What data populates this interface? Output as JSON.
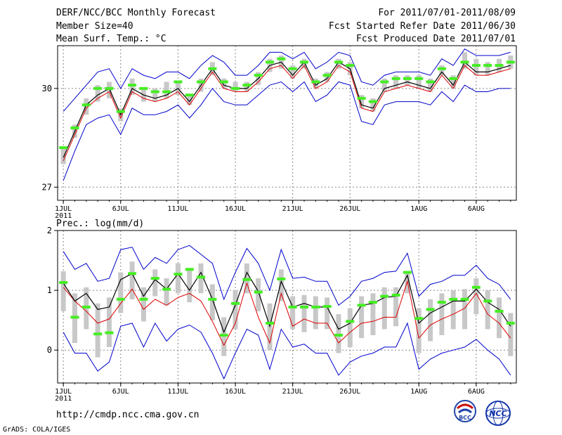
{
  "header": {
    "title": "DERF/NCC/BCC Monthly Forecast",
    "member_size": "Member Size=40",
    "variable_top": "Mean Surf. Temp.: °C",
    "period": "For 2011/07/01-2011/08/09",
    "started": "Fcst Started Refer Date 2011/06/30",
    "produced": "Fcst Produced Date 2011/07/01"
  },
  "footer": {
    "url": "http://cmdp.ncc.cma.gov.cn",
    "grads": "GrADS: COLA/IGES",
    "logo_bcc": "BCC",
    "logo_ncc": "NCC"
  },
  "colors": {
    "box": "#c8c8c8",
    "median": "#44ee22",
    "mean": "#000000",
    "red": "#dd0000",
    "envelope": "#0000cc",
    "grid": "#888888"
  },
  "chart_data": [
    {
      "type": "line",
      "title": "Mean Surf. Temp.: °C",
      "ylabel": "°C",
      "ylim": [
        26.6,
        31.3
      ],
      "yticks": [
        27,
        30
      ],
      "ytick_labels": [
        "27",
        "30"
      ],
      "xlim": [
        0.5,
        40.5
      ],
      "xticks": [
        1,
        6,
        11,
        16,
        21,
        26,
        32,
        37
      ],
      "xtick_labels": [
        "1JUL",
        "6JUL",
        "11JUL",
        "16JUL",
        "21JUL",
        "26JUL",
        "1AUG",
        "6AUG"
      ],
      "x_sublabel": "2011",
      "series": [
        {
          "name": "ensemble mean",
          "values": [
            27.9,
            28.7,
            29.5,
            29.8,
            30.0,
            29.2,
            30.0,
            29.8,
            29.7,
            29.8,
            30.0,
            29.6,
            30.1,
            30.6,
            30.1,
            30.0,
            30.0,
            30.3,
            30.7,
            30.8,
            30.4,
            30.8,
            30.1,
            30.3,
            30.8,
            30.6,
            29.5,
            29.4,
            30.0,
            30.1,
            30.2,
            30.1,
            30.0,
            30.5,
            30.1,
            30.8,
            30.5,
            30.5,
            30.6,
            30.7
          ]
        },
        {
          "name": "red line",
          "values": [
            27.8,
            28.6,
            29.4,
            29.7,
            29.9,
            29.1,
            29.9,
            29.7,
            29.6,
            29.7,
            29.9,
            29.5,
            30.0,
            30.5,
            30.0,
            29.9,
            29.9,
            30.2,
            30.6,
            30.7,
            30.3,
            30.7,
            30.0,
            30.2,
            30.7,
            30.5,
            29.4,
            29.3,
            29.9,
            30.0,
            30.1,
            30.0,
            29.9,
            30.4,
            30.0,
            30.7,
            30.4,
            30.4,
            30.5,
            30.6
          ]
        },
        {
          "name": "upper envelope",
          "values": [
            29.3,
            29.7,
            30.1,
            30.5,
            30.6,
            30.0,
            30.6,
            30.4,
            30.3,
            30.5,
            30.5,
            30.3,
            30.7,
            31.0,
            30.8,
            30.4,
            30.4,
            30.7,
            31.1,
            31.1,
            30.9,
            31.1,
            30.6,
            30.8,
            31.1,
            31.0,
            30.2,
            30.1,
            30.4,
            30.5,
            30.5,
            30.5,
            30.4,
            30.9,
            30.7,
            31.2,
            31.0,
            31.0,
            31.0,
            31.1
          ]
        },
        {
          "name": "lower envelope",
          "values": [
            27.2,
            28.1,
            28.9,
            29.1,
            29.2,
            28.6,
            29.4,
            29.2,
            29.2,
            29.3,
            29.5,
            29.1,
            29.5,
            30.0,
            29.6,
            29.5,
            29.5,
            29.8,
            30.1,
            30.2,
            29.9,
            30.2,
            29.6,
            29.8,
            30.2,
            30.1,
            29.0,
            28.9,
            29.5,
            29.6,
            29.6,
            29.6,
            29.5,
            29.9,
            29.6,
            30.1,
            29.9,
            29.9,
            30.0,
            30.0
          ]
        }
      ],
      "box_low": [
        27.7,
        28.5,
        29.2,
        29.6,
        29.7,
        29.0,
        29.8,
        29.6,
        29.6,
        29.7,
        29.8,
        29.5,
        29.9,
        30.4,
        30.0,
        29.9,
        29.9,
        30.1,
        30.5,
        30.6,
        30.3,
        30.6,
        30.0,
        30.2,
        30.6,
        30.4,
        29.4,
        29.3,
        29.9,
        30.0,
        30.1,
        30.0,
        29.9,
        30.4,
        30.0,
        30.6,
        30.4,
        30.4,
        30.5,
        30.6
      ],
      "box_high": [
        28.2,
        28.9,
        29.7,
        30.1,
        30.2,
        29.4,
        30.3,
        30.0,
        30.0,
        30.2,
        30.2,
        29.8,
        30.3,
        30.8,
        30.3,
        30.2,
        30.2,
        30.5,
        30.9,
        31.0,
        30.7,
        30.9,
        30.3,
        30.5,
        30.9,
        30.8,
        29.8,
        29.7,
        30.3,
        30.4,
        30.4,
        30.4,
        30.3,
        30.7,
        30.4,
        31.1,
        30.9,
        30.8,
        30.9,
        31.0
      ],
      "median": [
        28.2,
        28.8,
        29.5,
        30.0,
        30.0,
        29.3,
        30.1,
        30.0,
        29.9,
        29.9,
        30.2,
        29.8,
        30.2,
        30.6,
        30.2,
        30.0,
        30.1,
        30.4,
        30.8,
        30.9,
        30.6,
        30.8,
        30.2,
        30.4,
        30.8,
        30.7,
        29.7,
        29.6,
        30.2,
        30.3,
        30.3,
        30.3,
        30.2,
        30.6,
        30.3,
        30.8,
        30.7,
        30.7,
        30.7,
        30.8
      ]
    },
    {
      "type": "line",
      "title": "Prec.: log(mm/d)",
      "ylabel": "log(mm/d)",
      "ylim": [
        -0.55,
        2
      ],
      "yticks": [
        0,
        1,
        2
      ],
      "ytick_labels": [
        "0",
        "1",
        "2"
      ],
      "xlim": [
        0.5,
        40.5
      ],
      "xticks": [
        1,
        6,
        11,
        16,
        21,
        26,
        32,
        37
      ],
      "xtick_labels": [
        "1JUL",
        "6JUL",
        "11JUL",
        "16JUL",
        "21JUL",
        "26JUL",
        "1AUG",
        "6AUG"
      ],
      "x_sublabel": "2011",
      "series": [
        {
          "name": "ensemble mean",
          "values": [
            1.12,
            0.82,
            0.95,
            0.68,
            0.72,
            1.18,
            1.28,
            0.9,
            1.18,
            1.02,
            1.28,
            1.0,
            1.3,
            0.85,
            0.3,
            0.75,
            1.3,
            0.98,
            0.4,
            1.15,
            0.72,
            0.78,
            0.72,
            0.72,
            0.35,
            0.45,
            0.75,
            0.78,
            0.88,
            0.9,
            1.25,
            0.45,
            0.62,
            0.72,
            0.82,
            0.82,
            1.02,
            0.8,
            0.68,
            0.4
          ]
        },
        {
          "name": "red line",
          "values": [
            1.05,
            0.82,
            0.65,
            0.45,
            0.52,
            0.78,
            1.02,
            0.68,
            0.85,
            0.75,
            0.88,
            0.95,
            0.82,
            0.48,
            0.08,
            0.45,
            1.12,
            0.55,
            0.12,
            0.95,
            0.4,
            0.52,
            0.45,
            0.45,
            0.12,
            0.3,
            0.45,
            0.48,
            0.55,
            0.55,
            1.15,
            0.2,
            0.42,
            0.52,
            0.6,
            0.7,
            0.95,
            0.6,
            0.45,
            0.2
          ]
        },
        {
          "name": "upper envelope",
          "values": [
            1.65,
            1.35,
            1.45,
            1.15,
            1.2,
            1.68,
            1.72,
            1.35,
            1.55,
            1.45,
            1.68,
            1.75,
            1.6,
            1.45,
            0.85,
            1.3,
            1.7,
            1.45,
            1.0,
            1.68,
            1.2,
            1.22,
            1.15,
            1.15,
            0.75,
            0.9,
            1.15,
            1.2,
            1.3,
            1.32,
            1.62,
            0.9,
            1.1,
            1.15,
            1.25,
            1.25,
            1.42,
            1.2,
            1.1,
            0.85
          ]
        },
        {
          "name": "lower envelope",
          "values": [
            0.3,
            -0.05,
            -0.05,
            -0.35,
            -0.2,
            0.4,
            0.45,
            0.05,
            0.45,
            0.15,
            0.35,
            0.42,
            0.3,
            -0.05,
            -0.48,
            -0.05,
            0.35,
            0.25,
            -0.32,
            0.35,
            0.05,
            0.1,
            -0.05,
            -0.05,
            -0.42,
            -0.2,
            -0.1,
            -0.05,
            0.05,
            0.05,
            0.45,
            -0.32,
            -0.15,
            -0.05,
            0.0,
            0.05,
            0.18,
            0.0,
            -0.15,
            -0.42
          ]
        }
      ],
      "box_low": [
        0.65,
        0.12,
        0.35,
        -0.12,
        0.05,
        0.62,
        0.85,
        0.48,
        0.9,
        0.75,
        0.95,
        0.8,
        0.95,
        0.5,
        -0.1,
        0.35,
        0.95,
        0.65,
        0.0,
        0.82,
        0.35,
        0.3,
        0.35,
        0.35,
        -0.05,
        0.05,
        0.2,
        0.25,
        0.35,
        0.4,
        0.95,
        -0.05,
        0.15,
        0.25,
        0.35,
        0.35,
        0.6,
        0.35,
        0.2,
        -0.1
      ],
      "box_high": [
        1.32,
        0.95,
        1.05,
        0.78,
        0.88,
        1.3,
        1.48,
        1.05,
        1.35,
        1.2,
        1.45,
        1.35,
        1.45,
        1.1,
        0.55,
        1.0,
        1.45,
        1.2,
        0.78,
        1.35,
        0.9,
        0.92,
        0.9,
        0.88,
        0.6,
        0.7,
        0.9,
        0.95,
        1.05,
        1.05,
        1.32,
        0.7,
        0.85,
        0.95,
        1.0,
        1.02,
        1.2,
        1.0,
        0.88,
        0.62
      ],
      "median": [
        1.13,
        0.55,
        0.72,
        0.27,
        0.29,
        0.85,
        1.28,
        0.85,
        1.2,
        1.02,
        1.27,
        1.35,
        1.22,
        0.85,
        0.25,
        0.78,
        1.18,
        0.97,
        0.45,
        1.19,
        0.72,
        0.72,
        0.72,
        0.73,
        0.25,
        0.48,
        0.75,
        0.8,
        0.9,
        0.92,
        1.3,
        0.53,
        0.68,
        0.8,
        0.85,
        0.85,
        1.05,
        0.82,
        0.65,
        0.45
      ]
    }
  ]
}
